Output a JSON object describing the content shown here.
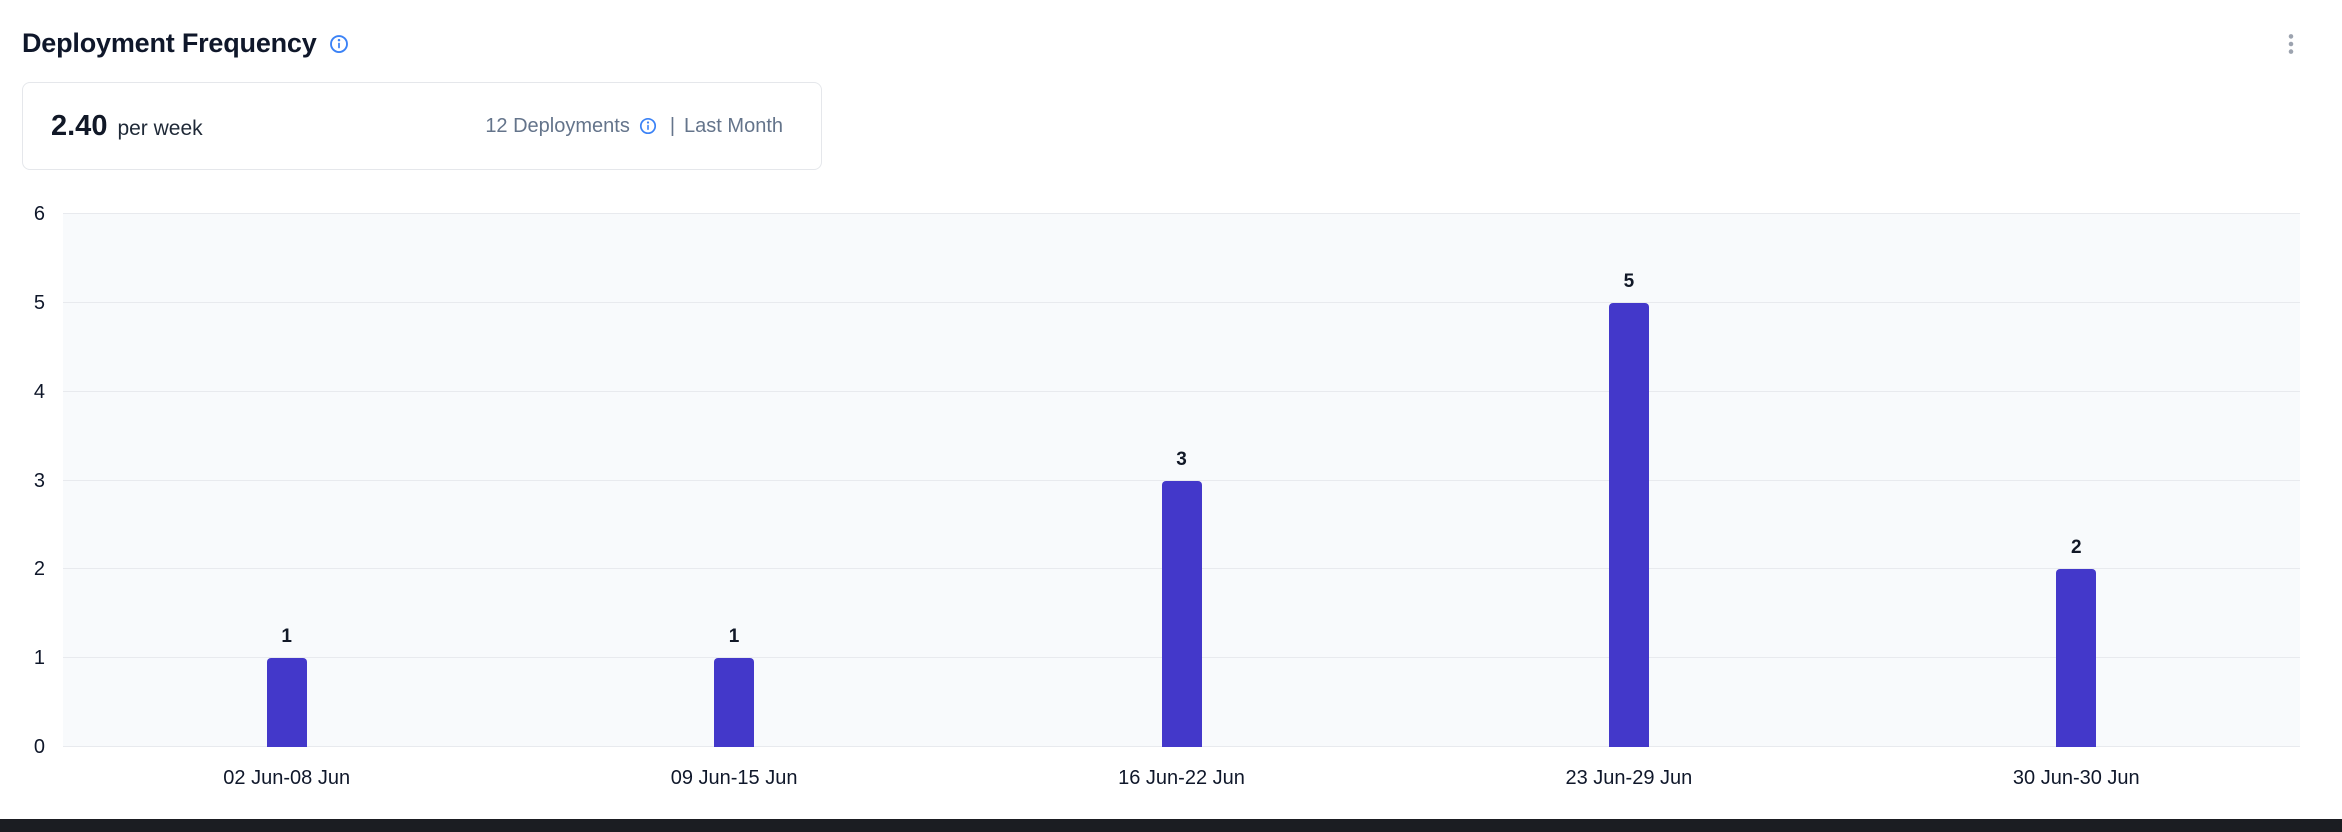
{
  "header": {
    "title": "Deployment Frequency"
  },
  "summary": {
    "value": "2.40",
    "unit": "per week",
    "deployments_label": "12 Deployments",
    "separator": "|",
    "period_label": "Last Month"
  },
  "icons": {
    "title_info": "info-icon",
    "deployments_info": "info-icon",
    "menu": "kebab-menu-icon"
  },
  "colors": {
    "bar": "#4338ca",
    "info_blue": "#3b82f6",
    "muted_text": "#64748b",
    "plot_background": "#f8fafc",
    "gridline": "#e8eaee",
    "kebab_gray": "#9ca3af",
    "bottom_bar": "#1b1d22"
  },
  "chart_data": {
    "type": "bar",
    "title": "Deployment Frequency",
    "categories": [
      "02 Jun-08 Jun",
      "09 Jun-15 Jun",
      "16 Jun-22 Jun",
      "23 Jun-29 Jun",
      "30 Jun-30 Jun"
    ],
    "values": [
      1,
      1,
      3,
      5,
      2
    ],
    "bar_labels": [
      "1",
      "1",
      "3",
      "5",
      "2"
    ],
    "xlabel": "",
    "ylabel": "",
    "ylim": [
      0,
      6
    ],
    "yticks": [
      0,
      1,
      2,
      3,
      4,
      5,
      6
    ],
    "grid": true,
    "legend": false
  }
}
